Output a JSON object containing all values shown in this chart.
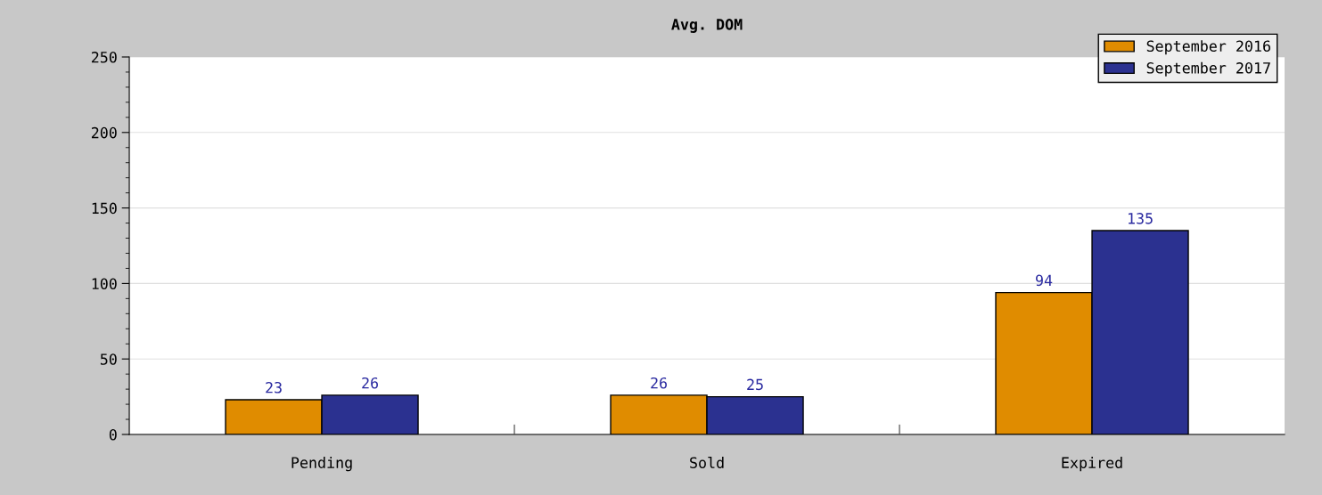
{
  "chart_data": {
    "type": "bar",
    "title": "Avg. DOM",
    "categories": [
      "Pending",
      "Sold",
      "Expired"
    ],
    "series": [
      {
        "name": "September 2016",
        "color": "#e08c00",
        "values": [
          23,
          26,
          94
        ]
      },
      {
        "name": "September 2017",
        "color": "#2b3190",
        "values": [
          26,
          25,
          135
        ]
      }
    ],
    "ylim": [
      0,
      250
    ],
    "yticks": [
      0,
      50,
      100,
      150,
      200,
      250
    ],
    "grid": "y",
    "legend": "top right",
    "data_labels": true
  }
}
